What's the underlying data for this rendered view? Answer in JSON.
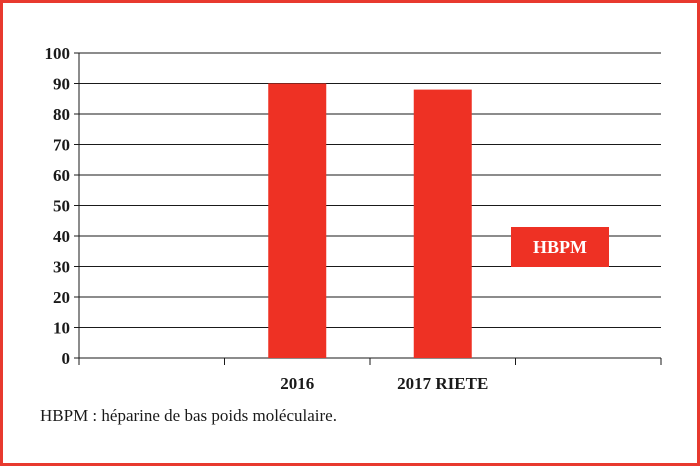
{
  "chart_data": {
    "type": "bar",
    "categories": [
      "",
      "2016",
      "2017 RIETE",
      ""
    ],
    "values": [
      null,
      90,
      88,
      null
    ],
    "ylim": [
      0,
      100
    ],
    "yticks": [
      0,
      10,
      20,
      30,
      40,
      50,
      60,
      70,
      80,
      90,
      100
    ],
    "grid": true,
    "legend": {
      "label": "HBPM",
      "placement": "right"
    },
    "title": "",
    "xlabel": "",
    "ylabel": ""
  },
  "colors": {
    "bar": "#ee3124",
    "frame": "#e8392f",
    "grid": "#1a1a1a"
  },
  "footnote": "HBPM : héparine de bas poids moléculaire."
}
